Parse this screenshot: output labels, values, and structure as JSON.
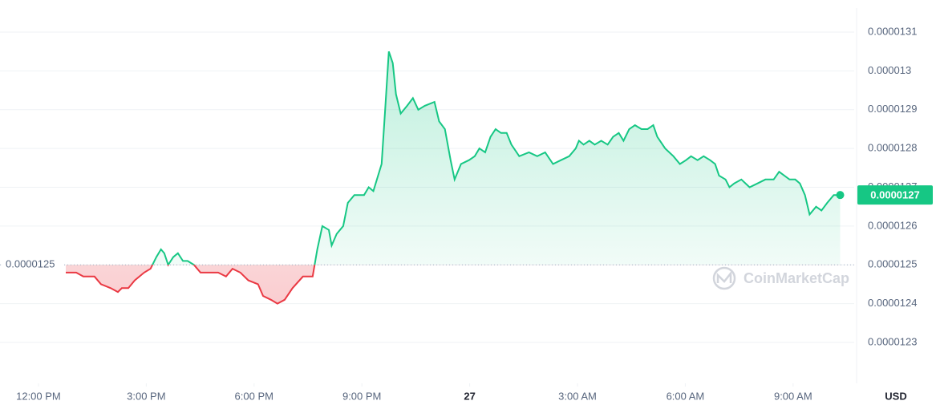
{
  "chart_data": {
    "type": "line",
    "x": [
      12.76,
      13.05,
      13.25,
      13.43,
      13.56,
      13.74,
      14.01,
      14.21,
      14.32,
      14.5,
      14.68,
      14.94,
      15.12,
      15.28,
      15.41,
      15.5,
      15.61,
      15.75,
      15.88,
      16.02,
      16.15,
      16.33,
      16.51,
      16.73,
      17,
      17.22,
      17.4,
      17.62,
      17.84,
      18.11,
      18.25,
      18.47,
      18.65,
      18.85,
      19.07,
      19.36,
      19.63,
      19.76,
      19.9,
      20.08,
      20.16,
      20.3,
      20.48,
      20.61,
      20.79,
      21.06,
      21.19,
      21.32,
      21.55,
      21.64,
      21.75,
      21.86,
      21.95,
      22.08,
      22.26,
      22.42,
      22.57,
      22.75,
      23.02,
      23.15,
      23.31,
      23.47,
      23.58,
      23.76,
      23.98,
      24.14,
      24.27,
      24.43,
      24.58,
      24.72,
      24.87,
      25.03,
      25.16,
      25.38,
      25.65,
      25.88,
      26.1,
      26.32,
      26.54,
      26.77,
      26.95,
      27.04,
      27.17,
      27.33,
      27.48,
      27.66,
      27.84,
      27.99,
      28.15,
      28.28,
      28.44,
      28.6,
      28.78,
      28.95,
      29.11,
      29.22,
      29.44,
      29.67,
      29.85,
      30.02,
      30.16,
      30.34,
      30.51,
      30.69,
      30.83,
      30.94,
      31.12,
      31.23,
      31.36,
      31.56,
      31.79,
      32.01,
      32.23,
      32.46,
      32.61,
      32.9,
      33.06,
      33.19,
      33.33,
      33.46,
      33.64,
      33.79,
      33.95,
      34.13,
      34.31
    ],
    "series": [
      {
        "name": "Price",
        "values": [
          1.248e-05,
          1.248e-05,
          1.247e-05,
          1.247e-05,
          1.247e-05,
          1.245e-05,
          1.244e-05,
          1.243e-05,
          1.244e-05,
          1.244e-05,
          1.246e-05,
          1.248e-05,
          1.249e-05,
          1.252e-05,
          1.254e-05,
          1.253e-05,
          1.25e-05,
          1.252e-05,
          1.253e-05,
          1.251e-05,
          1.251e-05,
          1.25e-05,
          1.248e-05,
          1.248e-05,
          1.248e-05,
          1.247e-05,
          1.249e-05,
          1.248e-05,
          1.246e-05,
          1.245e-05,
          1.242e-05,
          1.241e-05,
          1.24e-05,
          1.241e-05,
          1.244e-05,
          1.247e-05,
          1.247e-05,
          1.254e-05,
          1.26e-05,
          1.259e-05,
          1.255e-05,
          1.258e-05,
          1.26e-05,
          1.266e-05,
          1.268e-05,
          1.268e-05,
          1.27e-05,
          1.269e-05,
          1.276e-05,
          1.289e-05,
          1.305e-05,
          1.302e-05,
          1.294e-05,
          1.289e-05,
          1.291e-05,
          1.293e-05,
          1.29e-05,
          1.291e-05,
          1.292e-05,
          1.287e-05,
          1.285e-05,
          1.277e-05,
          1.272e-05,
          1.276e-05,
          1.277e-05,
          1.278e-05,
          1.28e-05,
          1.279e-05,
          1.283e-05,
          1.285e-05,
          1.284e-05,
          1.284e-05,
          1.281e-05,
          1.278e-05,
          1.279e-05,
          1.278e-05,
          1.279e-05,
          1.276e-05,
          1.277e-05,
          1.278e-05,
          1.28e-05,
          1.282e-05,
          1.281e-05,
          1.282e-05,
          1.281e-05,
          1.282e-05,
          1.281e-05,
          1.283e-05,
          1.284e-05,
          1.282e-05,
          1.285e-05,
          1.286e-05,
          1.285e-05,
          1.285e-05,
          1.286e-05,
          1.283e-05,
          1.28e-05,
          1.278e-05,
          1.276e-05,
          1.277e-05,
          1.278e-05,
          1.277e-05,
          1.278e-05,
          1.277e-05,
          1.276e-05,
          1.273e-05,
          1.272e-05,
          1.27e-05,
          1.271e-05,
          1.272e-05,
          1.27e-05,
          1.271e-05,
          1.272e-05,
          1.272e-05,
          1.274e-05,
          1.272e-05,
          1.272e-05,
          1.271e-05,
          1.268e-05,
          1.263e-05,
          1.265e-05,
          1.264e-05,
          1.266e-05,
          1.268e-05,
          1.268e-05
        ]
      }
    ],
    "xlim": [
      10.93,
      34.7
    ],
    "xticks": [
      {
        "value": 12,
        "label": "12:00 PM"
      },
      {
        "value": 15,
        "label": "3:00 PM"
      },
      {
        "value": 18,
        "label": "6:00 PM"
      },
      {
        "value": 21,
        "label": "9:00 PM"
      },
      {
        "value": 24,
        "label": "27"
      },
      {
        "value": 27,
        "label": "3:00 AM"
      },
      {
        "value": 30,
        "label": "6:00 AM"
      },
      {
        "value": 33,
        "label": "9:00 AM"
      }
    ],
    "ylim": [
      1.222e-05,
      1.316e-05
    ],
    "yticks": [
      1.23e-05,
      1.24e-05,
      1.25e-05,
      1.26e-05,
      1.27e-05,
      1.28e-05,
      1.29e-05,
      1.3e-05,
      1.31e-05
    ],
    "reference_line": {
      "value": 1.25e-05,
      "label": "0.0000125"
    },
    "current_price_label": "0.0000127",
    "currency_label": "USD",
    "watermark": "CoinMarketCap",
    "colors": {
      "up": "#16c784",
      "down": "#ea3943"
    },
    "grid": true
  }
}
